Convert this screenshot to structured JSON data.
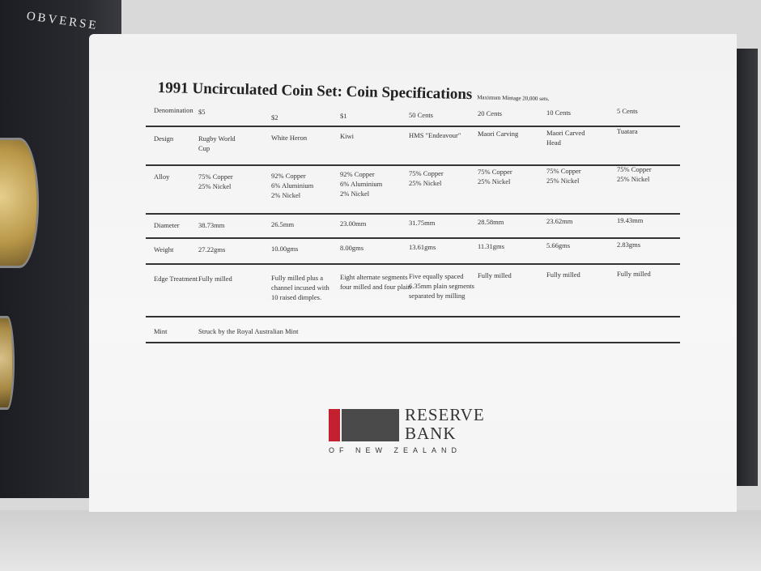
{
  "flap_label": "OBVERSE",
  "title": "1991 Uncirculated Coin Set: Coin Specifications",
  "subtitle": "Maximum Mintage 20,000 sets.",
  "rows": [
    {
      "label": "Denomination",
      "values": [
        "$5",
        "$2",
        "$1",
        "50 Cents",
        "20 Cents",
        "10 Cents",
        "5 Cents"
      ]
    },
    {
      "label": "Design",
      "values": [
        "Rugby World\nCup",
        "White Heron",
        "Kiwi",
        "HMS \"Endeavour\"",
        "Maori Carving",
        "Maori Carved\nHead",
        "Tuatara"
      ]
    },
    {
      "label": "Alloy",
      "values": [
        "75% Copper\n25% Nickel",
        "92% Copper\n6% Aluminium\n2% Nickel",
        "92% Copper\n6% Aluminium\n2% Nickel",
        "75% Copper\n25% Nickel",
        "75% Copper\n25% Nickel",
        "75% Copper\n25% Nickel",
        "75% Copper\n25% Nickel"
      ]
    },
    {
      "label": "Diameter",
      "values": [
        "38.73mm",
        "26.5mm",
        "23.00mm",
        "31.75mm",
        "28.58mm",
        "23.62mm",
        "19.43mm"
      ]
    },
    {
      "label": "Weight",
      "values": [
        "27.22gms",
        "10.00gms",
        "8.00gms",
        "13.61gms",
        "11.31gms",
        "5.66gms",
        "2.83gms"
      ]
    },
    {
      "label": "Edge Treatment",
      "values": [
        "Fully milled",
        "Fully milled plus a\nchannel incused with\n10 raised dimples.",
        "Eight alternate segments\nfour milled and four plain",
        "Five equally spaced\n6.35mm plain segments\nseparated by milling",
        "Fully milled",
        "Fully milled",
        "Fully milled"
      ]
    },
    {
      "label": "Mint",
      "values": [
        "Struck by the Royal Australian Mint"
      ]
    }
  ],
  "logo": {
    "name": "RESERVE\nBANK",
    "of": "OF NEW ZEALAND"
  },
  "colors": {
    "logo_red": "#c42030",
    "flap": "#1c1d22"
  }
}
